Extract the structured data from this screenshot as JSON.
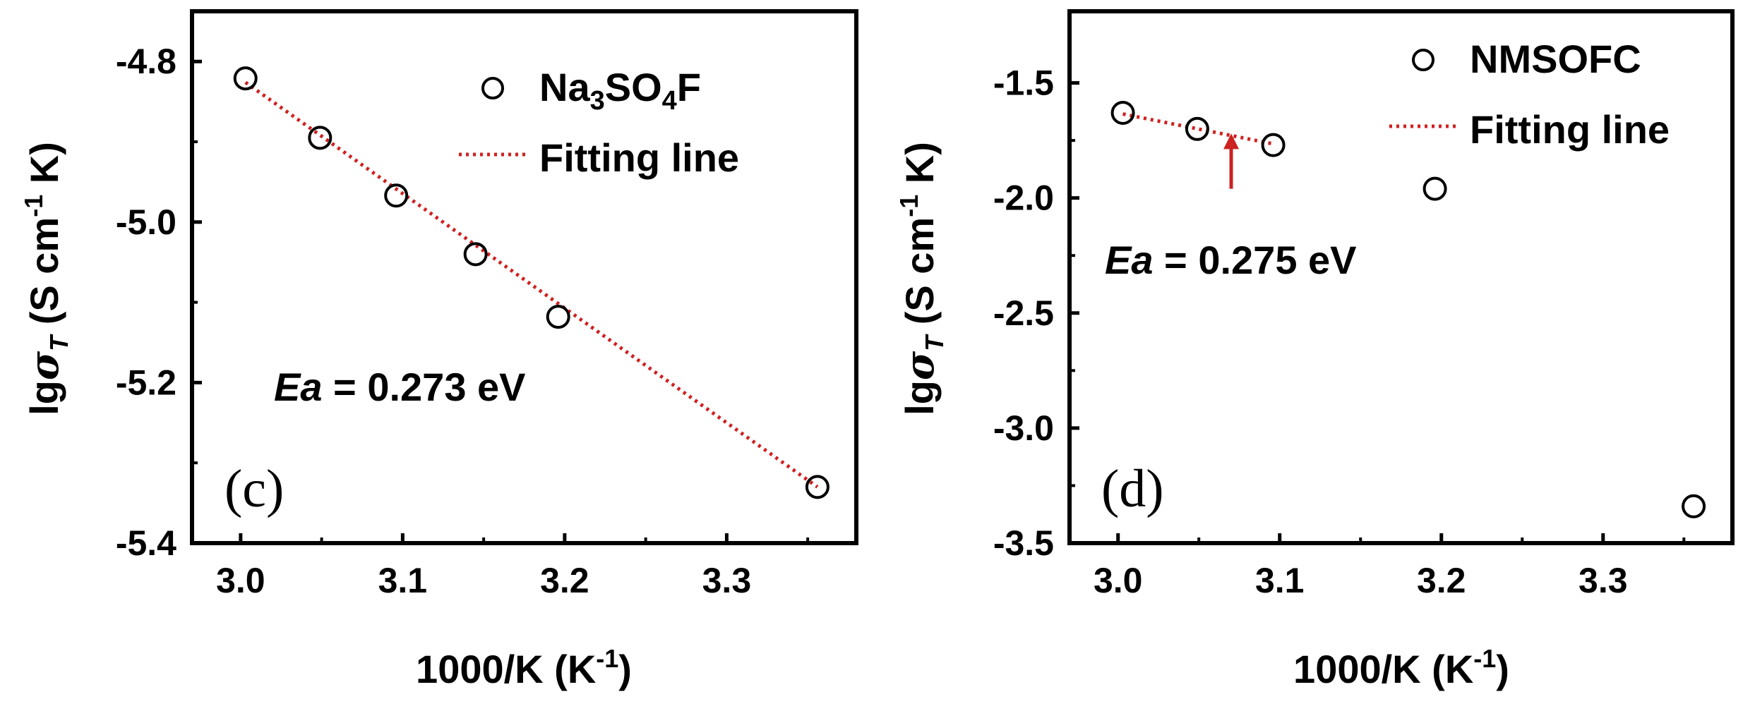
{
  "chart_data": [
    {
      "type": "scatter",
      "panel_label": "(c)",
      "xlabel_main": "1000/K (K",
      "xlabel_sup": "-1",
      "xlabel_end": ")",
      "ylabel_main": "lg",
      "ylabel_sym": "σ",
      "ylabel_sub": "T",
      "ylabel_rest": " (S cm",
      "ylabel_sup": "-1",
      "ylabel_end": " K)",
      "xlim": [
        2.97,
        3.38
      ],
      "ylim": [
        -5.4,
        -4.755
      ],
      "xticks": [
        3.0,
        3.1,
        3.2,
        3.3
      ],
      "xtick_labels": [
        "3.0",
        "3.1",
        "3.2",
        "3.3"
      ],
      "yticks": [
        -4.8,
        -5.0,
        -5.2,
        -5.4
      ],
      "ytick_labels": [
        "-4.8",
        "-5.0",
        "-5.2",
        "-5.4"
      ],
      "series": [
        {
          "name": "Na3SO4F",
          "x": [
            3.003,
            3.049,
            3.096,
            3.145,
            3.196,
            3.356
          ],
          "y": [
            -4.821,
            -4.895,
            -4.967,
            -5.04,
            -5.118,
            -5.33
          ]
        }
      ],
      "fit": {
        "name": "Fitting line",
        "x": [
          3.003,
          3.356
        ],
        "y": [
          -4.826,
          -5.33
        ]
      },
      "legend": [
        {
          "parts": [
            [
              "Na",
              ""
            ],
            [
              "3",
              "sub"
            ],
            [
              "SO",
              ""
            ],
            [
              "4",
              "sub"
            ],
            [
              "F",
              ""
            ]
          ],
          "kind": "marker"
        },
        {
          "parts": [
            [
              "Fitting line",
              ""
            ]
          ],
          "kind": "line"
        }
      ],
      "legend_position": "top-right",
      "annotation": {
        "italic": "Ea",
        "rest": " = 0.273 eV"
      },
      "grid": false
    },
    {
      "type": "scatter",
      "panel_label": "(d)",
      "xlabel_main": "1000/K (K",
      "xlabel_sup": "-1",
      "xlabel_end": ")",
      "ylabel_main": "lg",
      "ylabel_sym": "σ",
      "ylabel_sub": "T",
      "ylabel_rest": " (S cm",
      "ylabel_sup": "-1",
      "ylabel_end": " K)",
      "xlim": [
        2.97,
        3.38
      ],
      "ylim": [
        -3.5,
        -1.25
      ],
      "xticks": [
        3.0,
        3.1,
        3.2,
        3.3
      ],
      "xtick_labels": [
        "3.0",
        "3.1",
        "3.2",
        "3.3"
      ],
      "yticks": [
        -1.5,
        -2.0,
        -2.5,
        -3.0,
        -3.5
      ],
      "ytick_labels": [
        "-1.5",
        "-2.0",
        "-2.5",
        "-3.0",
        "-3.5"
      ],
      "series": [
        {
          "name": "NMSOFC",
          "x": [
            3.003,
            3.049,
            3.096,
            3.196,
            3.356
          ],
          "y": [
            -1.63,
            -1.7,
            -1.77,
            -1.96,
            -3.34
          ]
        }
      ],
      "fit": {
        "name": "Fitting line",
        "x": [
          3.003,
          3.096
        ],
        "y": [
          -1.635,
          -1.765
        ]
      },
      "legend": [
        {
          "parts": [
            [
              "NMSOFC",
              ""
            ]
          ],
          "kind": "marker"
        },
        {
          "parts": [
            [
              "Fitting line",
              ""
            ]
          ],
          "kind": "line"
        }
      ],
      "legend_position": "top-right",
      "annotation": {
        "italic": "Ea",
        "rest": " = 0.275 eV"
      },
      "arrow": {
        "x": 3.07,
        "y_from": -1.96,
        "y_to": -1.72,
        "color": "#cc2222"
      },
      "grid": false
    }
  ]
}
